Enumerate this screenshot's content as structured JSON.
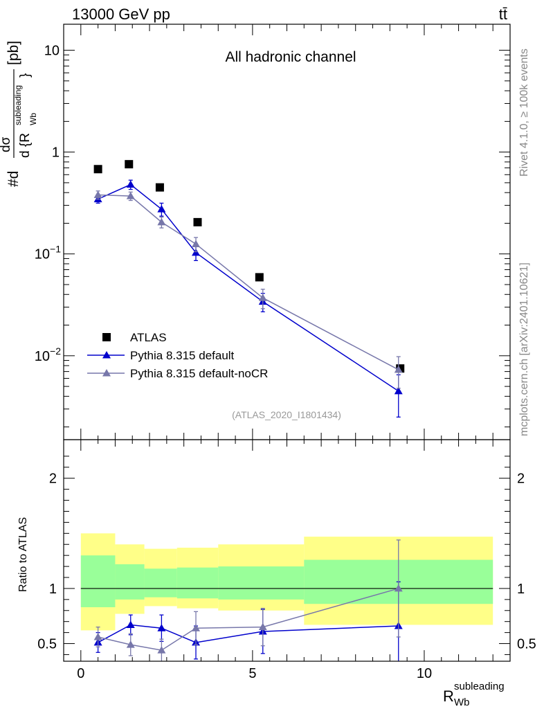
{
  "header": {
    "energy_label": "13000 GeV pp",
    "process_label": "tt̄",
    "channel_label": "All hadronic channel",
    "analysis_id": "(ATLAS_2020_I1801434)",
    "side_label_top": "Rivet 4.1.0, ≥ 100k events",
    "side_label_bottom": "mcplots.cern.ch [arXiv:2401.10621]"
  },
  "chart_data": [
    {
      "type": "scatter",
      "panel": "main",
      "y_scale": "log",
      "xlim": [
        -0.5,
        12.5
      ],
      "ylim": [
        0.0015,
        18
      ],
      "ylabel_parts": {
        "hash": "#d",
        "num": "dσ",
        "den": "d {R",
        "den_sup": "subleading",
        "den_sub": "Wb",
        "close": "}",
        "unit": "[pb]"
      },
      "y_ticks": [
        {
          "value": 10,
          "label": "10"
        },
        {
          "value": 1,
          "label": "1"
        },
        {
          "value": 0.1,
          "label": "10",
          "sup": "−1"
        },
        {
          "value": 0.01,
          "label": "10",
          "sup": "−2"
        }
      ],
      "legend_position": "lower-left",
      "series": [
        {
          "name": "ATLAS",
          "color": "#000000",
          "marker": "square",
          "x": [
            0.5,
            1.4,
            2.3,
            3.4,
            5.2,
            9.3
          ],
          "y": [
            0.68,
            0.76,
            0.45,
            0.205,
            0.059,
            0.0075
          ]
        },
        {
          "name": "Pythia 8.315 default",
          "color": "#0000cc",
          "marker": "triangle",
          "x": [
            0.5,
            1.45,
            2.35,
            3.35,
            5.3,
            9.25
          ],
          "y": [
            0.345,
            0.48,
            0.275,
            0.103,
            0.034,
            0.0045
          ],
          "err_low": [
            0.03,
            0.05,
            0.04,
            0.017,
            0.007,
            0.002
          ],
          "err_high": [
            0.03,
            0.05,
            0.04,
            0.017,
            0.007,
            0.002
          ]
        },
        {
          "name": "Pythia 8.315 default-noCR",
          "color": "#7777aa",
          "marker": "triangle",
          "x": [
            0.5,
            1.45,
            2.35,
            3.35,
            5.3,
            9.25
          ],
          "y": [
            0.38,
            0.37,
            0.205,
            0.125,
            0.037,
            0.0073
          ],
          "err_low": [
            0.035,
            0.035,
            0.025,
            0.02,
            0.008,
            0.0025
          ],
          "err_high": [
            0.035,
            0.035,
            0.025,
            0.02,
            0.008,
            0.0025
          ]
        }
      ]
    },
    {
      "type": "scatter",
      "panel": "ratio",
      "xlim": [
        -0.5,
        12.5
      ],
      "ylim": [
        0.34,
        2.35
      ],
      "xlabel": "R",
      "xlabel_sup": "subleading",
      "xlabel_sub": "Wb",
      "ylabel": "Ratio to ATLAS",
      "x_ticks": [
        0,
        5,
        10
      ],
      "y_ticks": [
        0.5,
        1,
        2
      ],
      "reference_line": 1,
      "bands": [
        {
          "x_low": 0.0,
          "x_high": 1.0,
          "yellow": [
            0.62,
            1.5
          ],
          "green": [
            0.83,
            1.3
          ]
        },
        {
          "x_low": 1.0,
          "x_high": 1.85,
          "yellow": [
            0.77,
            1.4
          ],
          "green": [
            0.9,
            1.22
          ]
        },
        {
          "x_low": 1.85,
          "x_high": 2.8,
          "yellow": [
            0.84,
            1.36
          ],
          "green": [
            0.92,
            1.18
          ]
        },
        {
          "x_low": 2.8,
          "x_high": 4.0,
          "yellow": [
            0.82,
            1.37
          ],
          "green": [
            0.91,
            1.19
          ]
        },
        {
          "x_low": 4.0,
          "x_high": 6.5,
          "yellow": [
            0.8,
            1.4
          ],
          "green": [
            0.9,
            1.2
          ]
        },
        {
          "x_low": 6.5,
          "x_high": 12.0,
          "yellow": [
            0.67,
            1.47
          ],
          "green": [
            0.86,
            1.26
          ]
        }
      ],
      "series": [
        {
          "name": "Pythia 8.315 default",
          "color": "#0000cc",
          "x": [
            0.5,
            1.45,
            2.35,
            3.35,
            5.3,
            9.25
          ],
          "y": [
            0.51,
            0.67,
            0.64,
            0.51,
            0.61,
            0.66
          ],
          "err_low": [
            0.09,
            0.09,
            0.12,
            0.15,
            0.2,
            0.4
          ],
          "err_high": [
            0.09,
            0.09,
            0.12,
            0.15,
            0.2,
            0.4
          ]
        },
        {
          "name": "Pythia 8.315 default-noCR",
          "color": "#7777aa",
          "x": [
            0.5,
            1.45,
            2.35,
            3.35,
            5.3,
            9.25
          ],
          "y": [
            0.56,
            0.49,
            0.44,
            0.64,
            0.65,
            1.0
          ],
          "err_low": [
            0.09,
            0.1,
            0.1,
            0.15,
            0.17,
            0.44
          ],
          "err_high": [
            0.09,
            0.1,
            0.1,
            0.15,
            0.17,
            0.44
          ]
        }
      ]
    }
  ]
}
